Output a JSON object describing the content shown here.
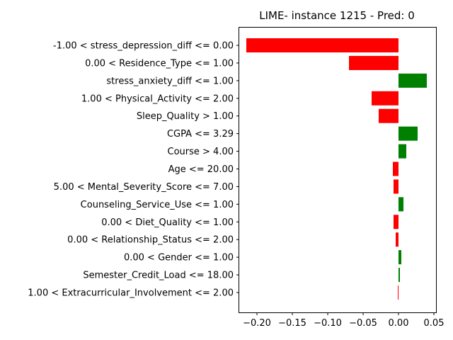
{
  "chart_data": {
    "type": "bar",
    "orientation": "horizontal",
    "title": "LIME- instance 1215 - Pred: 0",
    "xlabel": "",
    "ylabel": "",
    "xlim": [
      -0.225,
      0.053
    ],
    "xticks": [
      -0.2,
      -0.15,
      -0.1,
      -0.05,
      0.0,
      0.05
    ],
    "xtick_labels": [
      "−0.20",
      "−0.15",
      "−0.10",
      "−0.05",
      "0.00",
      "0.05"
    ],
    "colors": {
      "positive": "#008000",
      "negative": "#ff0000"
    },
    "grid": false,
    "legend": "none",
    "categories": [
      "-1.00 < stress_depression_diff <= 0.00",
      "0.00 < Residence_Type <= 1.00",
      "stress_anxiety_diff <= 1.00",
      "1.00 < Physical_Activity <= 2.00",
      "Sleep_Quality > 1.00",
      "CGPA <= 3.29",
      "Course > 4.00",
      "Age <= 20.00",
      "5.00 < Mental_Severity_Score <= 7.00",
      "Counseling_Service_Use <= 1.00",
      "0.00 < Diet_Quality <= 1.00",
      "0.00 < Relationship_Status <= 2.00",
      "0.00 < Gender <= 1.00",
      "Semester_Credit_Load <= 18.00",
      "1.00 < Extracurricular_Involvement <= 2.00"
    ],
    "values": [
      -0.215,
      -0.07,
      0.04,
      -0.038,
      -0.028,
      0.027,
      0.011,
      -0.008,
      -0.007,
      0.007,
      -0.007,
      -0.004,
      0.004,
      0.002,
      -0.001
    ]
  }
}
